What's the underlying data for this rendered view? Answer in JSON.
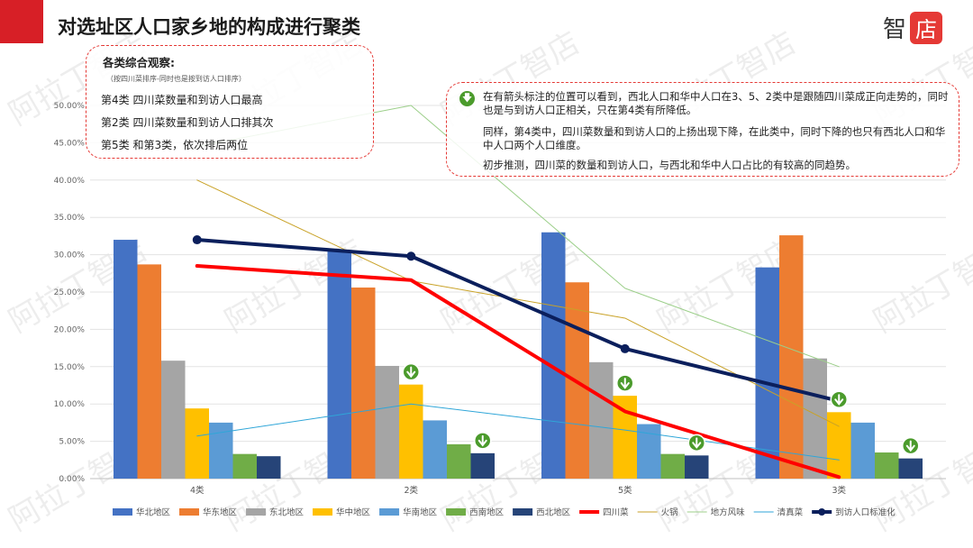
{
  "page_title": "对选址区人口家乡地的构成进行聚类",
  "logo": {
    "char1": "智",
    "char2": "店"
  },
  "watermark": "阿拉丁智店",
  "note_left": {
    "heading": "各类综合观察:",
    "subheading": "（按四川菜排序-同时也是按到访人口排序）",
    "lines": [
      "第4类 四川菜数量和到访人口最高",
      "第2类 四川菜数量和到访人口排其次",
      "第5类 和第3类，依次排后两位"
    ]
  },
  "note_right": {
    "paragraphs": [
      "在有箭头标注的位置可以看到，西北人口和华中人口在3、5、2类中是跟随四川菜成正向走势的，同时也是与到访人口正相关，只在第4类有所降低。",
      "同样，第4类中，四川菜数量和到访人口的上扬出现下降，在此类中，同时下降的也只有西北人口和华中人口两个人口维度。",
      "初步推测，四川菜的数量和到访人口，与西北和华中人口占比的有较高的同趋势。"
    ]
  },
  "chart_data": {
    "type": "bar",
    "categories": [
      "4类",
      "2类",
      "5类",
      "3类"
    ],
    "ylim": [
      0,
      50
    ],
    "yticks": [
      "0.00%",
      "5.00%",
      "10.00%",
      "15.00%",
      "20.00%",
      "25.00%",
      "30.00%",
      "35.00%",
      "40.00%",
      "45.00%",
      "50.00%"
    ],
    "bar_series": [
      {
        "name": "华北地区",
        "color": "#4472c4",
        "values": [
          32.0,
          30.5,
          33.0,
          28.3
        ]
      },
      {
        "name": "华东地区",
        "color": "#ed7d31",
        "values": [
          28.7,
          25.6,
          26.3,
          32.6
        ]
      },
      {
        "name": "东北地区",
        "color": "#a5a5a5",
        "values": [
          15.8,
          15.1,
          15.6,
          16.1
        ]
      },
      {
        "name": "华中地区",
        "color": "#ffc000",
        "values": [
          9.4,
          12.6,
          11.1,
          8.9
        ]
      },
      {
        "name": "华南地区",
        "color": "#5b9bd5",
        "values": [
          7.5,
          7.8,
          7.3,
          7.5
        ]
      },
      {
        "name": "西南地区",
        "color": "#70ad47",
        "values": [
          3.3,
          4.6,
          3.3,
          3.5
        ]
      },
      {
        "name": "西北地区",
        "color": "#264478",
        "values": [
          3.0,
          3.4,
          3.1,
          2.7
        ]
      }
    ],
    "line_series": [
      {
        "name": "四川菜",
        "color": "#ff0000",
        "width": 4,
        "marker": false,
        "values": [
          28.5,
          26.6,
          9.0,
          0.2
        ]
      },
      {
        "name": "火锅",
        "color": "#c9a227",
        "width": 1,
        "marker": false,
        "values": [
          40.0,
          26.5,
          21.5,
          7.0
        ]
      },
      {
        "name": "地方风味",
        "color": "#9ccf8a",
        "width": 1,
        "marker": false,
        "values": [
          44.5,
          50.0,
          25.5,
          15.0
        ]
      },
      {
        "name": "清真菜",
        "color": "#2fa6d8",
        "width": 1,
        "marker": false,
        "values": [
          5.7,
          10.0,
          6.5,
          2.5
        ]
      },
      {
        "name": "到访人口标准化",
        "color": "#0b1f5c",
        "width": 4,
        "marker": true,
        "values": [
          32.0,
          29.8,
          17.4,
          10.4
        ]
      }
    ],
    "arrow_annotations": [
      {
        "category": 1,
        "series": "华中地区"
      },
      {
        "category": 1,
        "series": "西北地区"
      },
      {
        "category": 2,
        "series": "华中地区"
      },
      {
        "category": 2,
        "series": "西北地区"
      },
      {
        "category": 3,
        "series": "华中地区"
      },
      {
        "category": 3,
        "series": "西北地区"
      }
    ],
    "legend_position": "bottom"
  }
}
